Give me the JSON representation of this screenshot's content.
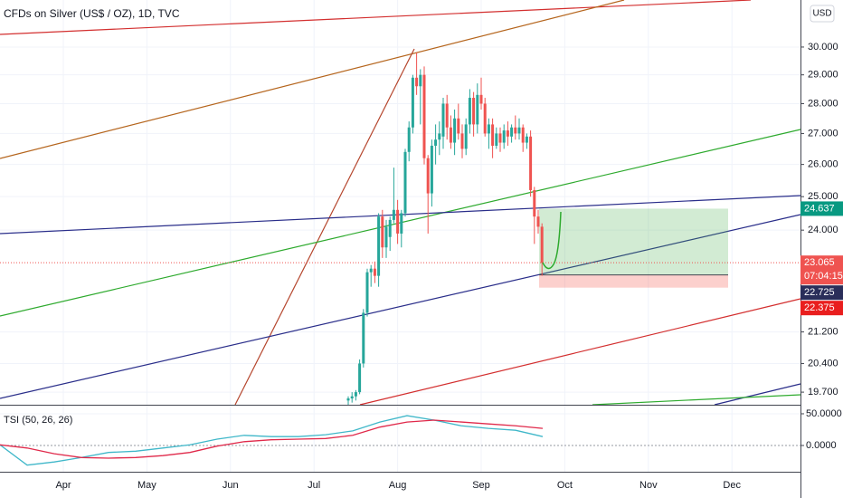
{
  "chart_data": [
    {
      "type": "candlestick",
      "title": "CFDs on Silver (US$ / OZ), 1D, TVC",
      "currency": "USD",
      "log_scale": true,
      "grid": true,
      "up_color": "#26a69a",
      "down_color": "#ef5350",
      "open": [
        19.5,
        19.55,
        19.6,
        19.7,
        20.4,
        21.7,
        22.8,
        22.9,
        22.7,
        24.4,
        23.5,
        23.8,
        24.3,
        24.6,
        23.9,
        24.5,
        26.4,
        27.2,
        28.9,
        28.6,
        29.0,
        26.2,
        25.1,
        26.6,
        26.8,
        26.9,
        28.0,
        27.2,
        26.7,
        27.5,
        27.0,
        26.5,
        27.3,
        28.2,
        27.3,
        28.3,
        28.0,
        27.0,
        27.3,
        26.6,
        27.0,
        26.7,
        27.1,
        26.9,
        27.2,
        27.0,
        27.2,
        26.7,
        26.9,
        25.2,
        24.4,
        24.1
      ],
      "high": [
        19.6,
        19.7,
        19.75,
        20.5,
        21.8,
        22.9,
        23.0,
        23.1,
        24.5,
        24.6,
        24.3,
        24.4,
        25.9,
        24.9,
        24.6,
        26.5,
        27.4,
        29.0,
        29.8,
        29.2,
        29.3,
        26.3,
        26.8,
        27.3,
        27.4,
        28.2,
        28.3,
        27.6,
        27.8,
        28.0,
        27.3,
        27.5,
        28.5,
        28.4,
        28.7,
        28.9,
        28.2,
        27.5,
        27.5,
        27.2,
        27.2,
        27.3,
        27.4,
        27.3,
        27.6,
        27.5,
        27.3,
        27.0,
        27.1,
        25.3,
        24.6,
        24.2
      ],
      "low": [
        19.4,
        19.45,
        19.5,
        19.65,
        20.3,
        21.6,
        22.4,
        22.5,
        22.4,
        23.2,
        23.2,
        23.4,
        24.2,
        23.6,
        23.5,
        24.4,
        26.1,
        27.0,
        28.3,
        27.3,
        26.0,
        23.9,
        24.7,
        26.0,
        26.3,
        26.5,
        26.8,
        26.5,
        26.3,
        26.8,
        26.2,
        26.3,
        27.0,
        26.9,
        27.0,
        27.8,
        26.9,
        26.5,
        26.2,
        26.5,
        26.4,
        26.5,
        26.6,
        26.7,
        26.8,
        26.8,
        26.4,
        26.5,
        25.0,
        23.6,
        23.9,
        22.7
      ],
      "close": [
        19.55,
        19.6,
        19.7,
        20.4,
        21.7,
        22.8,
        22.9,
        22.7,
        24.4,
        23.5,
        24.1,
        24.3,
        24.6,
        23.9,
        24.5,
        26.4,
        27.2,
        28.9,
        28.6,
        29.0,
        26.2,
        25.1,
        26.6,
        26.8,
        27.0,
        28.0,
        27.2,
        26.7,
        27.5,
        27.0,
        26.5,
        27.3,
        28.2,
        27.3,
        28.3,
        28.0,
        27.0,
        27.3,
        26.6,
        27.0,
        26.7,
        27.1,
        26.9,
        27.2,
        27.0,
        27.2,
        26.7,
        26.9,
        25.2,
        24.4,
        24.1,
        23.065
      ],
      "ylim": [
        19.4,
        31.77
      ],
      "yticks": [
        {
          "value": 30,
          "label": "30.000"
        },
        {
          "value": 29,
          "label": "29.000"
        },
        {
          "value": 28,
          "label": "28.000"
        },
        {
          "value": 27,
          "label": "27.000"
        },
        {
          "value": 26,
          "label": "26.000"
        },
        {
          "value": 25,
          "label": "25.000"
        },
        {
          "value": 24,
          "label": "24.000"
        },
        {
          "value": 21.2,
          "label": "21.200"
        },
        {
          "value": 20.4,
          "label": "20.400"
        },
        {
          "value": 19.7,
          "label": "19.700"
        }
      ],
      "price_labels": [
        {
          "value": 24.637,
          "label": "24.637",
          "color": "#089981"
        },
        {
          "value": 23.065,
          "label": "23.065",
          "color": "#ef5350"
        },
        {
          "value": 22.725,
          "label": "22.725",
          "color": "#2a2e5a"
        },
        {
          "value": 22.375,
          "label": "22.375",
          "color": "#e91e1e"
        }
      ],
      "countdown": "07:04:15"
    },
    {
      "type": "line",
      "title": "TSI (50, 26, 26)",
      "series": [
        {
          "name": "TSI",
          "color": "#3fb7c9",
          "values": [
            1,
            -31,
            -26,
            -19,
            -11,
            -9,
            -4,
            1,
            10,
            16,
            14,
            14,
            17,
            23,
            37,
            47,
            40,
            31,
            27,
            24,
            14
          ]
        },
        {
          "name": "Signal",
          "color": "#e0294a",
          "values": [
            1,
            -4,
            -13,
            -19,
            -20,
            -19,
            -16,
            -11,
            -1,
            6,
            9,
            10,
            11,
            16,
            29,
            37,
            40,
            37,
            34,
            31,
            27
          ]
        }
      ],
      "ylim": [
        -40,
        61.4
      ],
      "yticks": [
        {
          "value": 50,
          "label": "50.0000"
        },
        {
          "value": 0,
          "label": "0.0000"
        }
      ]
    }
  ],
  "time_axis": {
    "categories": [
      "Apr",
      "May",
      "Jun",
      "Jul",
      "Aug",
      "Sep",
      "Oct",
      "Nov",
      "Dec"
    ]
  }
}
